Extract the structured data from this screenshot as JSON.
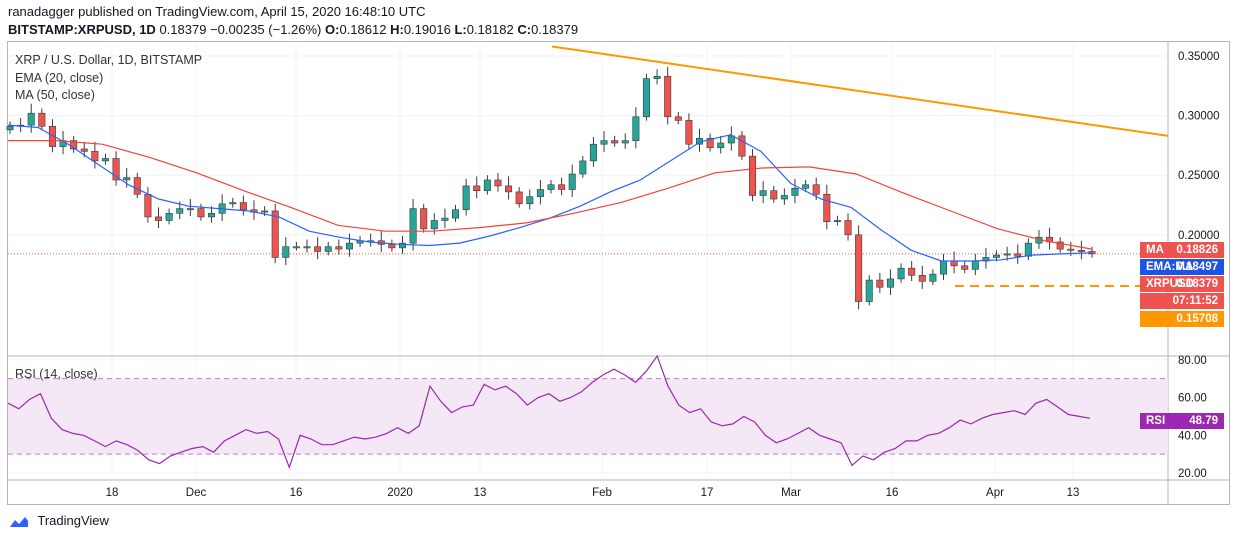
{
  "header": {
    "line1": "ranadagger published on TradingView.com, April 15, 2020 16:48:10 UTC",
    "symbol": "BITSTAMP:XRPUSD, 1D",
    "last": "0.18379",
    "change": "−0.00235 (−1.26%)",
    "o_label": "O:",
    "o": "0.18612",
    "h_label": "H:",
    "h": "0.19016",
    "l_label": "L:",
    "l": "0.18182",
    "c_label": "C:",
    "c": "0.18379"
  },
  "legend": {
    "title": "XRP / U.S. Dollar, 1D, BITSTAMP",
    "ema": "EMA (20, close)",
    "ma": "MA (50, close)",
    "rsi": "RSI (14, close)"
  },
  "badges": {
    "ma_label": "MA",
    "ma_value": "0.18826",
    "ema_label": "EMA:MA",
    "ema_value": "0.18497",
    "price_label": "XRPUSD",
    "price_value": "0.18379",
    "countdown": "07:11:52",
    "support": "0.15708",
    "rsi_label": "RSI",
    "rsi_value": "48.79"
  },
  "footer": {
    "brand": "TradingView"
  },
  "colors": {
    "up": "#26a69a",
    "down": "#ef5350",
    "ema": "#2962ff",
    "ma": "#f44336",
    "trendline": "#ff9800",
    "support": "#ff9800",
    "rsi_line": "#9c27b0",
    "rsi_band": "#e1bee7",
    "ma_badge": "#ef5350",
    "ema_badge": "#1e53e5",
    "price_badge": "#ef5350",
    "support_badge": "#ff9800"
  },
  "chart_data": [
    {
      "type": "candlestick",
      "title": "XRP / U.S. Dollar, 1D, BITSTAMP",
      "ylim": [
        0.13,
        0.36
      ],
      "y_ticks": [
        "0.35000",
        "0.30000",
        "0.25000",
        "0.20000"
      ],
      "x_ticks": [
        "18",
        "Dec",
        "16",
        "2020",
        "13",
        "Feb",
        "17",
        "Mar",
        "16",
        "Apr",
        "13"
      ],
      "trendline": {
        "from": {
          "x": "Jan 25",
          "y": 0.358
        },
        "to": {
          "x": "Apr 20",
          "y": 0.283
        }
      },
      "support_level": 0.15708,
      "series": [
        {
          "name": "XRPUSD",
          "values": [
            0.291,
            0.292,
            0.302,
            0.291,
            0.274,
            0.279,
            0.272,
            0.27,
            0.262,
            0.264,
            0.246,
            0.248,
            0.234,
            0.215,
            0.212,
            0.218,
            0.222,
            0.222,
            0.215,
            0.218,
            0.226,
            0.227,
            0.221,
            0.219,
            0.22,
            0.181,
            0.19,
            0.19,
            0.19,
            0.186,
            0.19,
            0.188,
            0.193,
            0.195,
            0.195,
            0.192,
            0.189,
            0.193,
            0.222,
            0.205,
            0.212,
            0.214,
            0.221,
            0.241,
            0.237,
            0.246,
            0.241,
            0.236,
            0.226,
            0.232,
            0.238,
            0.242,
            0.238,
            0.251,
            0.262,
            0.276,
            0.279,
            0.277,
            0.279,
            0.299,
            0.331,
            0.333,
            0.299,
            0.296,
            0.276,
            0.281,
            0.273,
            0.277,
            0.283,
            0.266,
            0.233,
            0.237,
            0.23,
            0.233,
            0.239,
            0.242,
            0.234,
            0.211,
            0.212,
            0.2,
            0.144,
            0.162,
            0.156,
            0.163,
            0.172,
            0.166,
            0.161,
            0.167,
            0.178,
            0.174,
            0.171,
            0.178,
            0.181,
            0.183,
            0.184,
            0.182,
            0.193,
            0.198,
            0.194,
            0.188,
            0.187,
            0.186,
            0.184
          ]
        },
        {
          "name": "EMA (20, close)",
          "values": [
            0.292,
            0.29,
            0.276,
            0.259,
            0.242,
            0.23,
            0.224,
            0.222,
            0.22,
            0.215,
            0.203,
            0.198,
            0.194,
            0.192,
            0.191,
            0.193,
            0.199,
            0.206,
            0.214,
            0.224,
            0.236,
            0.246,
            0.262,
            0.278,
            0.284,
            0.27,
            0.243,
            0.23,
            0.223,
            0.204,
            0.187,
            0.178,
            0.178,
            0.179,
            0.183,
            0.184,
            0.185
          ]
        },
        {
          "name": "MA (50, close)",
          "values": [
            0.279,
            0.279,
            0.276,
            0.265,
            0.252,
            0.237,
            0.223,
            0.208,
            0.203,
            0.203,
            0.206,
            0.21,
            0.218,
            0.227,
            0.239,
            0.252,
            0.256,
            0.257,
            0.251,
            0.235,
            0.22,
            0.205,
            0.195,
            0.188
          ]
        }
      ]
    },
    {
      "type": "line",
      "title": "RSI (14, close)",
      "ylim": [
        18,
        84
      ],
      "y_ticks": [
        "80.00",
        "60.00",
        "40.00",
        "20.00"
      ],
      "band": [
        30,
        70
      ],
      "series": [
        {
          "name": "RSI",
          "values": [
            57,
            54,
            59,
            62,
            49,
            43,
            41,
            40,
            37,
            34,
            37,
            35,
            32,
            27,
            25,
            29,
            31,
            33,
            34,
            31,
            37,
            40,
            43,
            41,
            42,
            38,
            23,
            40,
            38,
            35,
            35,
            37,
            39,
            38,
            39,
            41,
            44,
            41,
            45,
            66,
            58,
            52,
            55,
            56,
            67,
            64,
            66,
            62,
            56,
            60,
            62,
            58,
            60,
            63,
            68,
            72,
            75,
            72,
            68,
            74,
            82,
            66,
            56,
            52,
            54,
            47,
            45,
            46,
            50,
            47,
            40,
            36,
            38,
            41,
            44,
            40,
            38,
            36,
            24,
            29,
            27,
            31,
            33,
            37,
            37,
            40,
            41,
            44,
            48,
            46,
            49,
            51,
            52,
            53,
            51,
            57,
            59,
            55,
            51,
            50,
            49
          ]
        }
      ]
    }
  ]
}
